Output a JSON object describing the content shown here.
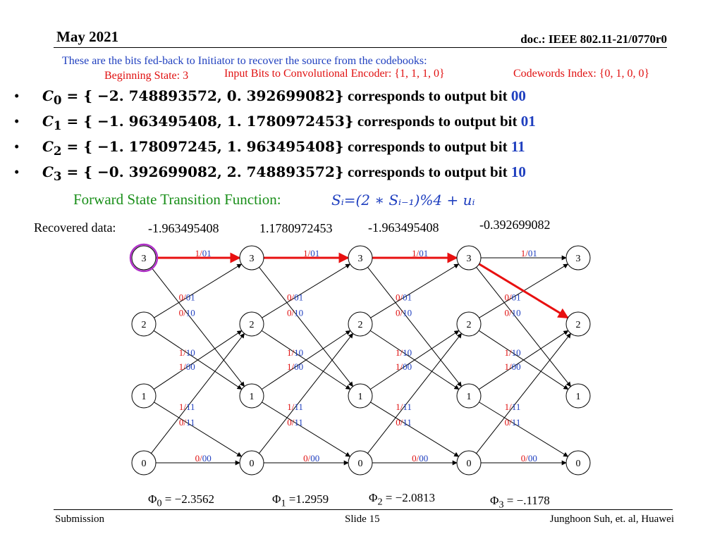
{
  "header": {
    "date": "May 2021",
    "doc": "doc.: IEEE 802.11-21/0770r0"
  },
  "intro": "These are the bits fed-back to Initiator to recover the source from the codebooks:",
  "beginning_state": "Beginning State: 3",
  "input_bits": "Input Bits to Convolutional Encoder: {1, 1, 1, 0}",
  "codewords_index": "Codewords Index: {0, 1, 0, 0}",
  "codebooks": [
    {
      "label": "C",
      "sub": "0",
      "values": "= { −2. 748893572, 0. 392699082}",
      "text": "corresponds to output bit",
      "bits": "00"
    },
    {
      "label": "C",
      "sub": "1",
      "values": "= { −1. 963495408, 1. 1780972453}",
      "text": "corresponds to output bit",
      "bits": "01"
    },
    {
      "label": "C",
      "sub": "2",
      "values": "= { −1. 178097245, 1. 963495408}",
      "text": "corresponds to output bit",
      "bits": "11"
    },
    {
      "label": "C",
      "sub": "3",
      "values": "= { −0. 392699082, 2. 748893572}",
      "text": "corresponds to output bit",
      "bits": "10"
    }
  ],
  "forward_label": "Forward State Transition Function:",
  "forward_formula": "Sᵢ=(2 ∗ Sᵢ₋₁)%4 + uᵢ",
  "recovered_label": "Recovered data:",
  "recovered_values": [
    "-1.963495408",
    "1.1780972453",
    "-1.963495408",
    "-0.392699082"
  ],
  "trellis": {
    "state_labels": [
      "3",
      "2",
      "1",
      "0"
    ],
    "stage_count": 5,
    "branch_labels": [
      "1/01",
      "0/10",
      "1/10",
      "0/01",
      "1/00",
      "0/11",
      "1/11",
      "0/00"
    ],
    "path": [
      3,
      3,
      3,
      3,
      2
    ],
    "colors": {
      "path": "#e81010",
      "input": "#e01010",
      "output": "#1f3fbf",
      "start_circle": "#b030c8"
    }
  },
  "phis": [
    {
      "sym": "Φ",
      "sub": "0",
      "value": "= −2.3562"
    },
    {
      "sym": "Φ",
      "sub": "1",
      "value": "=1.2959"
    },
    {
      "sym": "Φ",
      "sub": "2",
      "value": "= −2.0813"
    },
    {
      "sym": "Φ",
      "sub": "3",
      "value": "= −.1178"
    }
  ],
  "footer": {
    "left": "Submission",
    "center": "Slide 15",
    "right": "Junghoon Suh, et. al, Huawei"
  }
}
